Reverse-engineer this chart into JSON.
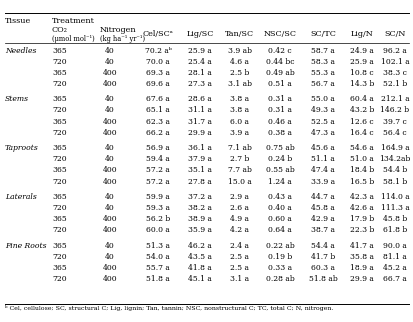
{
  "tissues": [
    {
      "name": "Needles",
      "rows": [
        [
          "365",
          "40",
          "70.2 aᵇ",
          "25.9 a",
          "3.9 ab",
          "0.42 c",
          "58.7 a",
          "24.9 a",
          "96.2 a"
        ],
        [
          "720",
          "40",
          "70.0 a",
          "25.4 a",
          "4.6 a",
          "0.44 bc",
          "58.3 a",
          "25.9 a",
          "102.1 a"
        ],
        [
          "365",
          "400",
          "69.3 a",
          "28.1 a",
          "2.5 b",
          "0.49 ab",
          "55.3 a",
          "10.8 c",
          "38.3 c"
        ],
        [
          "720",
          "400",
          "69.6 a",
          "27.3 a",
          "3.1 ab",
          "0.51 a",
          "56.7 a",
          "14.3 b",
          "52.1 b"
        ]
      ]
    },
    {
      "name": "Stems",
      "rows": [
        [
          "365",
          "40",
          "67.6 a",
          "28.6 a",
          "3.8 a",
          "0.31 a",
          "55.0 a",
          "60.4 a",
          "212.1 a"
        ],
        [
          "720",
          "40",
          "65.1 a",
          "31.1 a",
          "3.8 a",
          "0.31 a",
          "49.3 a",
          "43.2 b",
          "146.2 b"
        ],
        [
          "365",
          "400",
          "62.3 a",
          "31.7 a",
          "6.0 a",
          "0.46 a",
          "52.5 a",
          "12.6 c",
          "39.7 c"
        ],
        [
          "720",
          "400",
          "66.2 a",
          "29.9 a",
          "3.9 a",
          "0.38 a",
          "47.3 a",
          "16.4 c",
          "56.4 c"
        ]
      ]
    },
    {
      "name": "Taproots",
      "rows": [
        [
          "365",
          "40",
          "56.9 a",
          "36.1 a",
          "7.1 ab",
          "0.75 ab",
          "45.6 a",
          "54.6 a",
          "164.9 a"
        ],
        [
          "720",
          "40",
          "59.4 a",
          "37.9 a",
          "2.7 b",
          "0.24 b",
          "51.1 a",
          "51.0 a",
          "134.2ab"
        ],
        [
          "365",
          "400",
          "57.2 a",
          "35.1 a",
          "7.7 ab",
          "0.55 ab",
          "47.4 a",
          "18.4 b",
          "54.4 b"
        ],
        [
          "720",
          "400",
          "57.2 a",
          "27.8 a",
          "15.0 a",
          "1.24 a",
          "33.9 a",
          "16.5 b",
          "58.1 b"
        ]
      ]
    },
    {
      "name": "Laterals",
      "rows": [
        [
          "365",
          "40",
          "59.9 a",
          "37.2 a",
          "2.9 a",
          "0.43 a",
          "44.7 a",
          "42.3 a",
          "114.0 a"
        ],
        [
          "720",
          "40",
          "59.3 a",
          "38.2 a",
          "2.6 a",
          "0.40 a",
          "45.8 a",
          "42.6 a",
          "111.3 a"
        ],
        [
          "365",
          "400",
          "56.2 b",
          "38.9 a",
          "4.9 a",
          "0.60 a",
          "42.9 a",
          "17.9 b",
          "45.8 b"
        ],
        [
          "720",
          "400",
          "60.0 a",
          "35.9 a",
          "4.2 a",
          "0.64 a",
          "38.7 a",
          "22.3 b",
          "61.8 b"
        ]
      ]
    },
    {
      "name": "Fine Roots",
      "rows": [
        [
          "365",
          "40",
          "51.3 a",
          "46.2 a",
          "2.4 a",
          "0.22 ab",
          "54.4 a",
          "41.7 a",
          "90.0 a"
        ],
        [
          "720",
          "40",
          "54.0 a",
          "43.5 a",
          "2.5 a",
          "0.19 b",
          "41.7 b",
          "35.8 a",
          "81.1 a"
        ],
        [
          "365",
          "400",
          "55.7 a",
          "41.8 a",
          "2.5 a",
          "0.33 a",
          "60.3 a",
          "18.9 a",
          "45.2 a"
        ],
        [
          "720",
          "400",
          "51.8 a",
          "45.1 a",
          "3.1 a",
          "0.28 ab",
          "51.8 ab",
          "29.9 a",
          "66.7 a"
        ]
      ]
    }
  ],
  "footnote": "ᵇ Cel, cellulose; SC, structural C; Lig, lignin; Tan, tannin; NSC, nonstructural C; TC, total C; N, nitrogen."
}
